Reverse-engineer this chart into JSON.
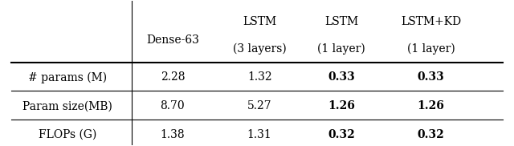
{
  "col_headers": [
    [
      "Dense-63",
      ""
    ],
    [
      "LSTM",
      "(3 layers)"
    ],
    [
      "LSTM",
      "(1 layer)"
    ],
    [
      "LSTM+KD",
      "(1 layer)"
    ]
  ],
  "row_labels": [
    "# params (M)",
    "Param size(MB)",
    "FLOPs (G)"
  ],
  "data": [
    [
      "2.28",
      "1.32",
      "0.33",
      "0.33"
    ],
    [
      "8.70",
      "5.27",
      "1.26",
      "1.26"
    ],
    [
      "1.38",
      "1.31",
      "0.32",
      "0.32"
    ]
  ],
  "bold_cols": [
    2,
    3
  ],
  "figsize": [
    6.4,
    1.82
  ],
  "dpi": 100,
  "background_color": "#ffffff",
  "fontsize": 10,
  "header_fontsize": 10
}
